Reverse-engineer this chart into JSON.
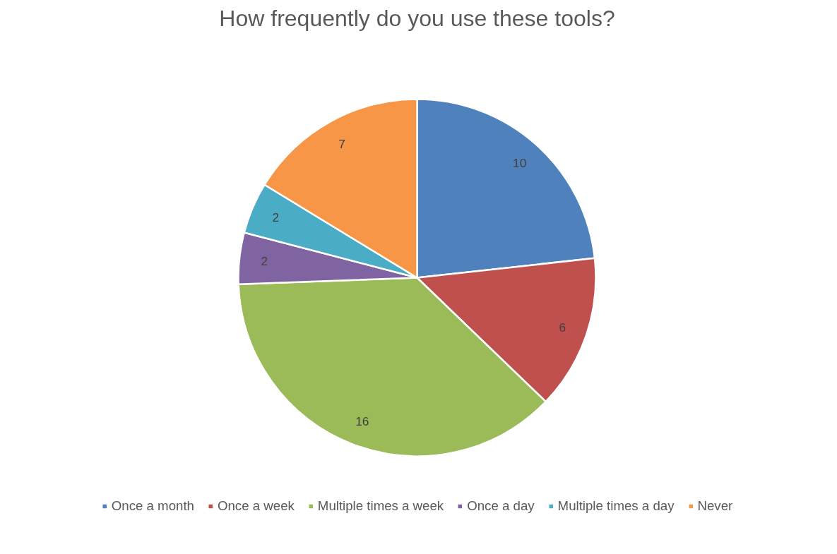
{
  "chart_data": {
    "type": "pie",
    "title": "How frequently do you use these tools?",
    "categories": [
      "Once a month",
      "Once a week",
      "Multiple times a week",
      "Once a day",
      "Multiple times a day",
      "Never"
    ],
    "values": [
      10,
      6,
      16,
      2,
      2,
      7
    ],
    "colors": [
      "#4f81bd",
      "#c0504d",
      "#9bbb59",
      "#8064a2",
      "#4bacc6",
      "#f79646"
    ],
    "data_labels": true,
    "legend": "bottom"
  }
}
